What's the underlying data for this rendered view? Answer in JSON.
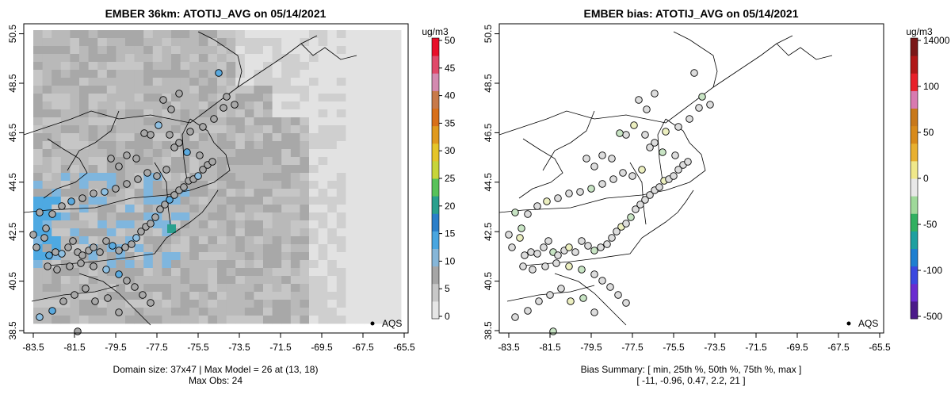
{
  "panels": [
    {
      "title": "EMBER 36km: ATOTIJ_AVG on 05/14/2021",
      "footer_lines": [
        "Domain size: 37x47 | Max Model = 26 at (13, 18)",
        "Max Obs: 24"
      ],
      "legend_label": "AQS",
      "colorbar_unit": "ug/m3",
      "colorbar_ticks": [
        "0",
        "5",
        "10",
        "15",
        "20",
        "25",
        "30",
        "35",
        "40",
        "45",
        "50"
      ],
      "colorbar_colors": [
        "#e6e6e6",
        "#c8c8c8",
        "#a6a6a6",
        "#86b6d8",
        "#4aa6e0",
        "#2b7fc9",
        "#2aa08e",
        "#58c25a",
        "#c7d53a",
        "#e5c52a",
        "#e09a1f",
        "#d8701a",
        "#c87a4a",
        "#d48ab0",
        "#e04a6a",
        "#e8102a"
      ]
    },
    {
      "title": "EMBER bias: ATOTIJ_AVG on 05/14/2021",
      "footer_lines": [
        "Bias Summary: [ min, 25th %, 50th %, 75th %, max ]",
        "[ -11,   -0.96,   0.47,   2.2,   21 ]"
      ],
      "legend_label": "AQS",
      "colorbar_unit": "ug/m3",
      "colorbar_ticks": [
        "-500",
        "-100",
        "-50",
        "0",
        "50",
        "100",
        "14000"
      ],
      "colorbar_colors": [
        "#4b1a8a",
        "#6a2bd0",
        "#3a48e0",
        "#1e7fd0",
        "#1ea0a0",
        "#30b060",
        "#9fd99a",
        "#e8e8e8",
        "#f0e88a",
        "#e8b030",
        "#d88a1a",
        "#c8781a",
        "#d87ab0",
        "#e8202a",
        "#b01818",
        "#7a1818"
      ]
    }
  ],
  "x_tick_labels": [
    "-83.5",
    "-81.5",
    "-79.5",
    "-77.5",
    "-75.5",
    "-73.5",
    "-71.5",
    "-69.5",
    "-67.5",
    "-65.5"
  ],
  "y_tick_labels": [
    "38.5",
    "40.5",
    "42.5",
    "44.5",
    "46.5",
    "48.5",
    "50.5"
  ],
  "colors": {
    "land_line": "#000000",
    "site_fill": "#b0b0b0",
    "bias_fill": "#dcdcdc"
  }
}
